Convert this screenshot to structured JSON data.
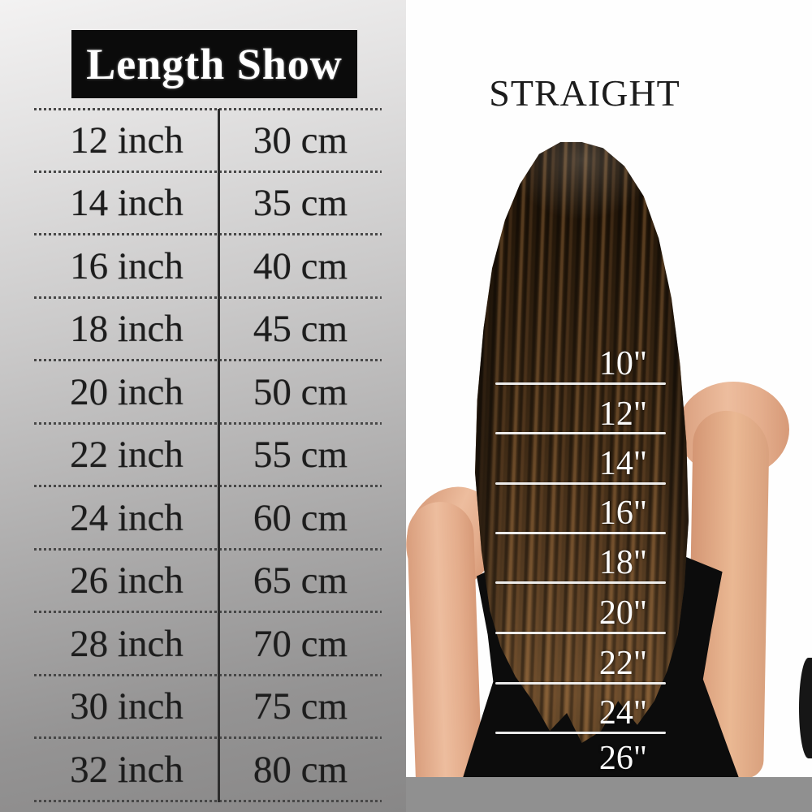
{
  "left_panel": {
    "title": "Length Show",
    "rows": [
      {
        "inch": "12 inch",
        "cm": "30 cm"
      },
      {
        "inch": "14 inch",
        "cm": "35 cm"
      },
      {
        "inch": "16 inch",
        "cm": "40 cm"
      },
      {
        "inch": "18 inch",
        "cm": "45 cm"
      },
      {
        "inch": "20 inch",
        "cm": "50 cm"
      },
      {
        "inch": "22 inch",
        "cm": "55 cm"
      },
      {
        "inch": "24 inch",
        "cm": "60 cm"
      },
      {
        "inch": "26 inch",
        "cm": "65 cm"
      },
      {
        "inch": "28 inch",
        "cm": "70 cm"
      },
      {
        "inch": "30 inch",
        "cm": "75 cm"
      },
      {
        "inch": "32 inch",
        "cm": "80 cm"
      }
    ]
  },
  "right_panel": {
    "title": "STRAIGHT",
    "hair_markers": [
      "10\"",
      "12\"",
      "14\"",
      "16\"",
      "18\"",
      "20\"",
      "22\"",
      "24\"",
      "26\""
    ]
  },
  "colors": {
    "title_bg": "#0b0b0b",
    "title_text": "#ffffff",
    "table_text": "#1d1d1d",
    "panel_gradient_top": "#f3f2f2",
    "panel_gradient_bottom": "#888787",
    "photo_bg": "#fefefe",
    "marker_line": "#f5f5f5",
    "marker_text": "#fbfbfb",
    "gray_bar": "#909090",
    "hair_dark": "#1c1209",
    "hair_light": "#6b4c2c",
    "skin": "#e4ad8c",
    "dress": "#0c0c0c"
  }
}
